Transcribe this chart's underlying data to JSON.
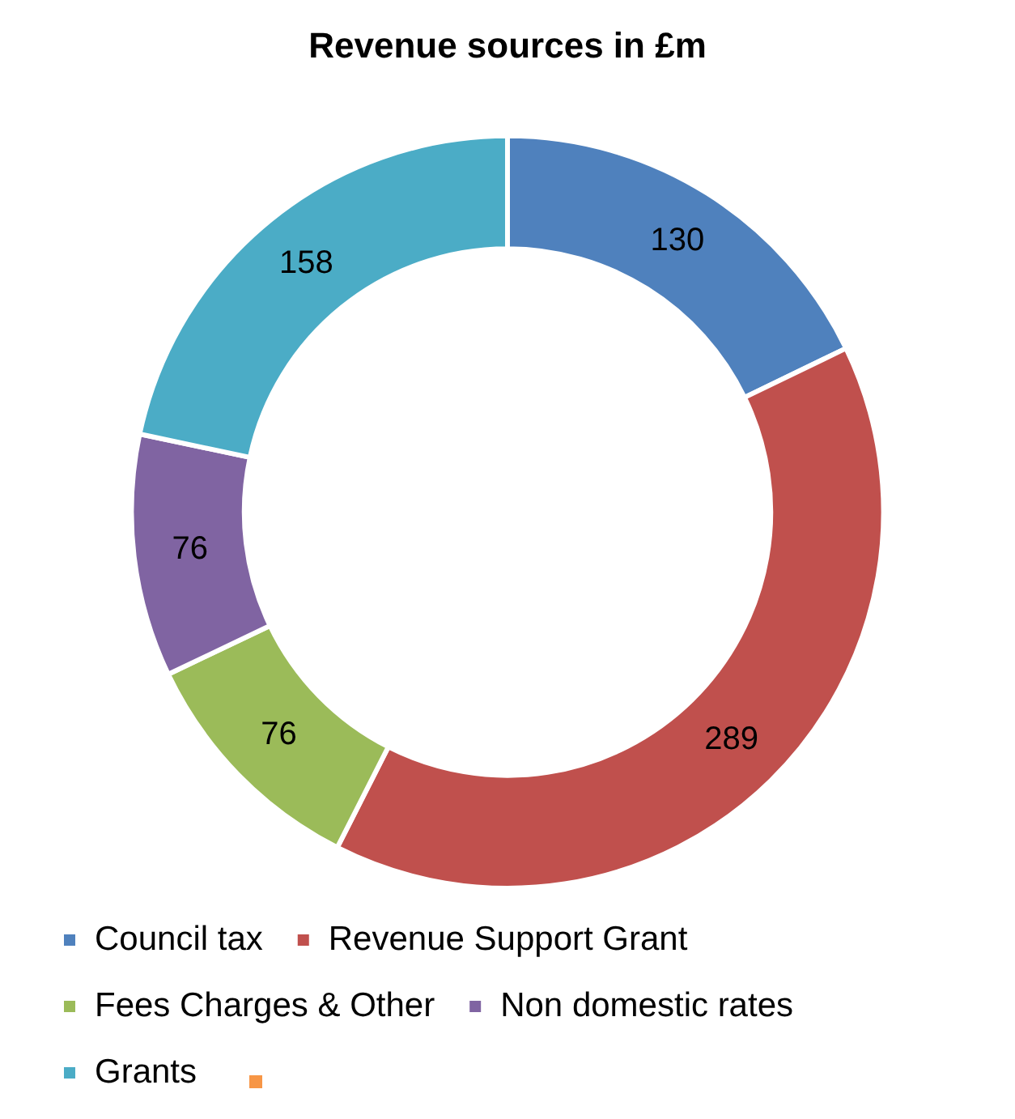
{
  "chart_data": {
    "type": "donut",
    "title": "Revenue sources in £m",
    "categories": [
      "Council tax",
      "Revenue Support Grant",
      "Fees Charges & Other",
      "Non domestic rates",
      "Grants",
      null
    ],
    "values": [
      130,
      289,
      76,
      76,
      158,
      0
    ],
    "colors": [
      "#4f81bd",
      "#c0504d",
      "#9bbb59",
      "#8064a2",
      "#4bacc6",
      "#f79646"
    ],
    "data_labels": true,
    "legend": "bottom"
  }
}
